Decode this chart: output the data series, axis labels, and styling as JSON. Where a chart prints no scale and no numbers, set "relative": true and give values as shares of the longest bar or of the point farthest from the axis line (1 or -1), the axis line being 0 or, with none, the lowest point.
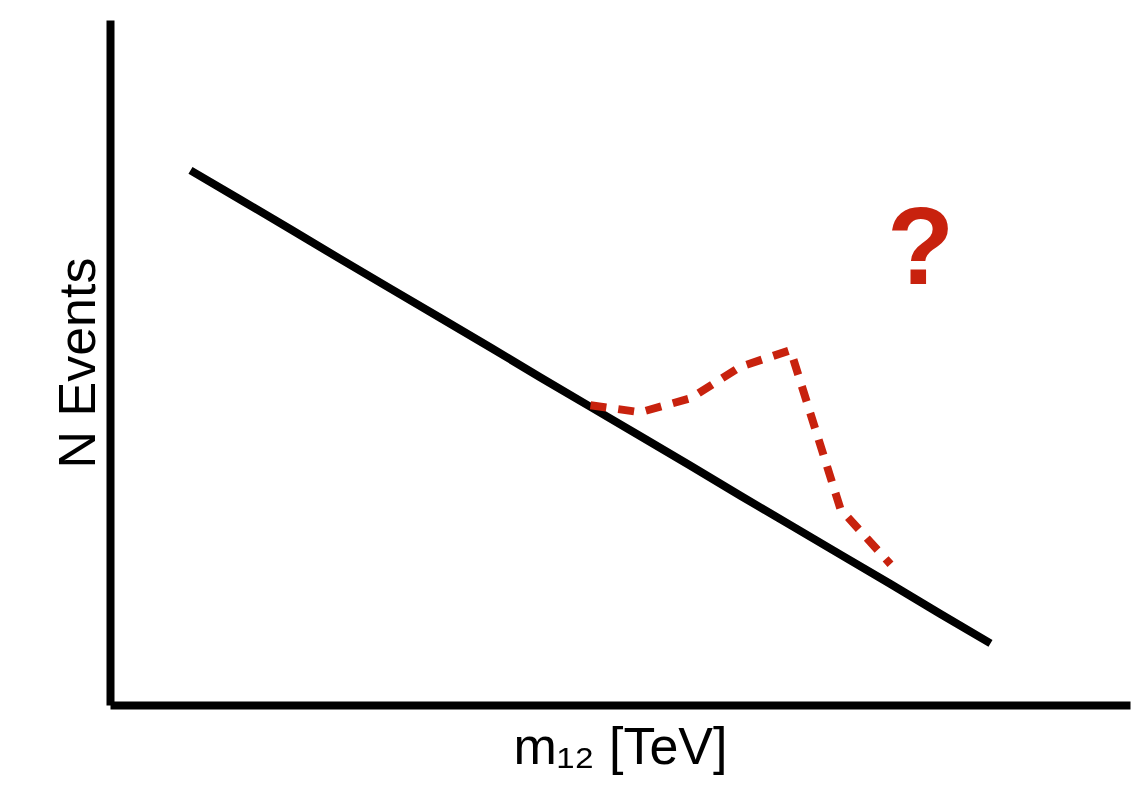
{
  "chart_data": {
    "type": "line",
    "relative": true,
    "xlabel": "m₁₂ [TeV]",
    "ylabel": "N Events",
    "annotations": [
      "?"
    ],
    "grid": false,
    "categories": [
      null,
      null,
      null,
      null,
      null,
      null,
      null,
      null,
      null,
      null,
      null,
      null,
      null,
      null,
      null,
      null,
      null
    ],
    "series": [
      {
        "color": "#000000",
        "line_style": "solid",
        "values": [
          1,
          0.945,
          0.89,
          0.834,
          0.779,
          0.724,
          0.669,
          0.613,
          0.558,
          0.503,
          0.448,
          0.392,
          0.337,
          0.282,
          0.227,
          0.171,
          0.116
        ]
      },
      {
        "color": "#c8220e",
        "line_style": "dashed",
        "values": [
          null,
          null,
          null,
          null,
          null,
          null,
          null,
          null,
          0.561,
          0.548,
          0.574,
          0.633,
          0.664,
          0.367,
          0.264,
          null,
          null
        ]
      }
    ]
  }
}
